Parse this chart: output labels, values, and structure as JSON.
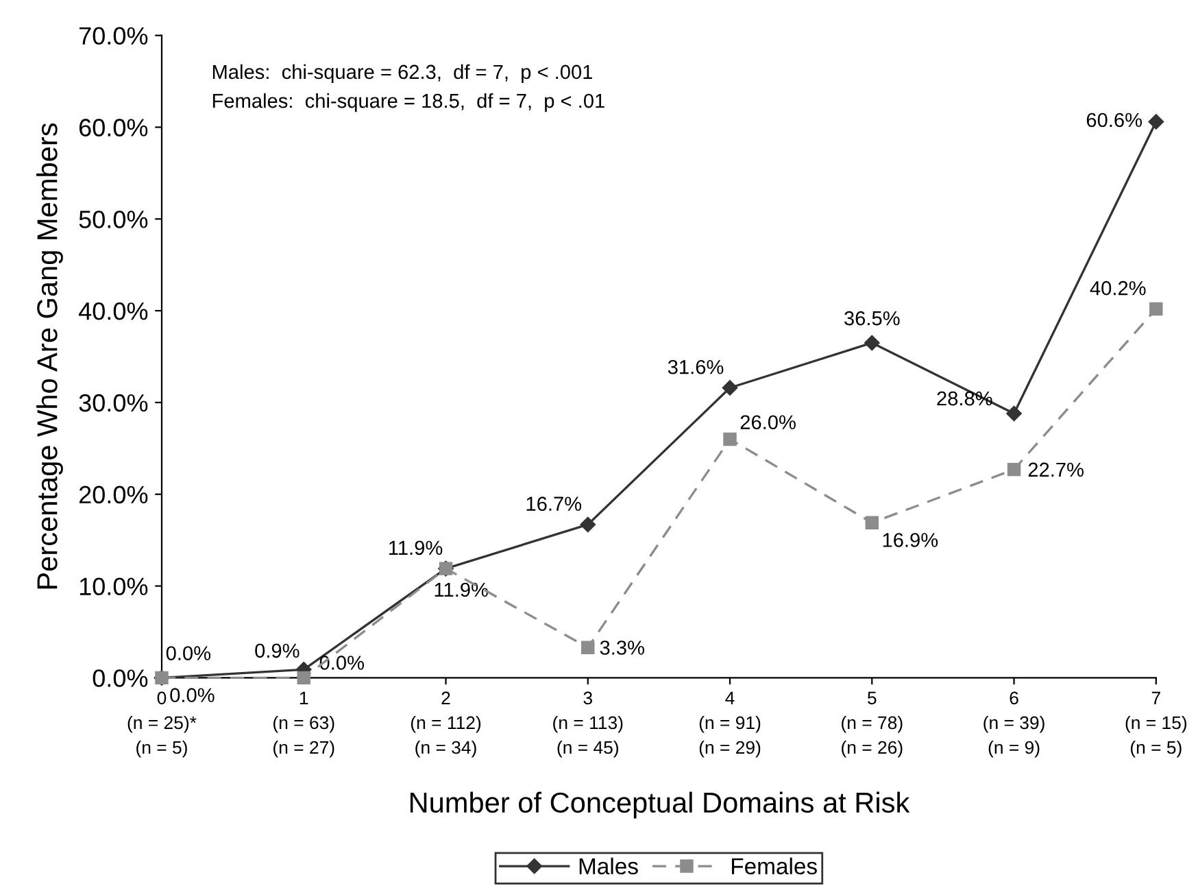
{
  "chart_data": {
    "type": "line",
    "xlabel": "Number of Conceptual Domains at Risk",
    "ylabel": "Percentage Who Are Gang Members",
    "categories": [
      "0\n(n = 25)*\n(n = 5)",
      "1\n(n = 63)\n(n = 27)",
      "2\n(n = 112)\n(n = 34)",
      "3\n(n = 113)\n(n = 45)",
      "4\n(n = 91)\n(n = 29)",
      "5\n(n = 78)\n(n = 26)",
      "6\n(n = 39)\n(n = 9)",
      "7\n(n = 15)\n(n = 5)"
    ],
    "series": [
      {
        "name": "Males",
        "color": "#333333",
        "marker": "diamond",
        "line_style": "solid",
        "values": [
          0.0,
          0.9,
          11.9,
          16.7,
          31.6,
          36.5,
          28.8,
          60.6
        ],
        "value_labels": [
          "0.0%",
          "0.9%",
          "11.9%",
          "16.7%",
          "31.6%",
          "36.5%",
          "28.8%",
          "60.6%"
        ]
      },
      {
        "name": "Females",
        "color": "#8c8c8c",
        "marker": "square",
        "line_style": "dashed",
        "values": [
          0.0,
          0.0,
          11.9,
          3.3,
          26.0,
          16.9,
          22.7,
          40.2
        ],
        "value_labels": [
          "0.0%",
          "0.0%",
          "11.9%",
          "3.3%",
          "26.0%",
          "16.9%",
          "22.7%",
          "40.2%"
        ]
      }
    ],
    "ylim": [
      0,
      70
    ],
    "yticks": [
      {
        "value": 0,
        "label": "0.0%"
      },
      {
        "value": 10,
        "label": "10.0%"
      },
      {
        "value": 20,
        "label": "20.0%"
      },
      {
        "value": 30,
        "label": "30.0%"
      },
      {
        "value": 40,
        "label": "40.0%"
      },
      {
        "value": 50,
        "label": "50.0%"
      },
      {
        "value": 60,
        "label": "60.0%"
      },
      {
        "value": 70,
        "label": "70.0%"
      }
    ],
    "annotations": [
      "Males:  chi-square = 62.3,  df = 7,  p < .001",
      "Females:  chi-square = 18.5,  df = 7,  p < .01"
    ],
    "legend": "bottom"
  }
}
